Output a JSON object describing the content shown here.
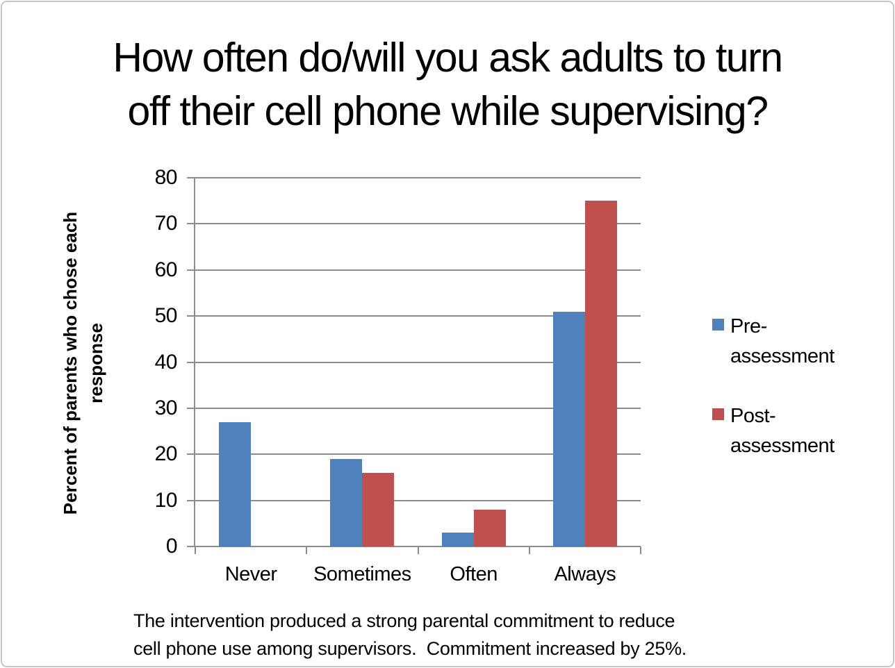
{
  "slide": {
    "title_lines": [
      "How often do/will you ask adults to turn",
      "off their cell phone while supervising?"
    ],
    "caption_lines": [
      "The intervention produced a strong parental commitment to reduce",
      "cell phone use among supervisors.  Commitment increased by 25%."
    ]
  },
  "chart_data": {
    "type": "bar",
    "title": "How often do/will you ask adults to turn off their cell phone while supervising?",
    "xlabel": "",
    "ylabel": "Percent of parents who chose each response",
    "ylabel_lines": [
      "Percent of parents who chose each",
      "response"
    ],
    "categories": [
      "Never",
      "Sometimes",
      "Often",
      "Always"
    ],
    "series": [
      {
        "name": "Pre-assessment",
        "color": "#4F81BD",
        "values": [
          27,
          19,
          3,
          51
        ]
      },
      {
        "name": "Post-assessment",
        "color": "#C0504D",
        "values": [
          0,
          16,
          8,
          75
        ]
      }
    ],
    "ylim": [
      0,
      80
    ],
    "ytick_step": 10,
    "grid": true,
    "legend_position": "right",
    "annotation": "The intervention produced a strong parental commitment to reduce cell phone use among supervisors.  Commitment increased by 25%."
  },
  "colors": {
    "gridline": "#8C8C8C",
    "axis": "#8C8C8C",
    "slide_border": "#C6C6C6",
    "pre_assessment": "#4F81BD",
    "post_assessment": "#C0504D"
  }
}
